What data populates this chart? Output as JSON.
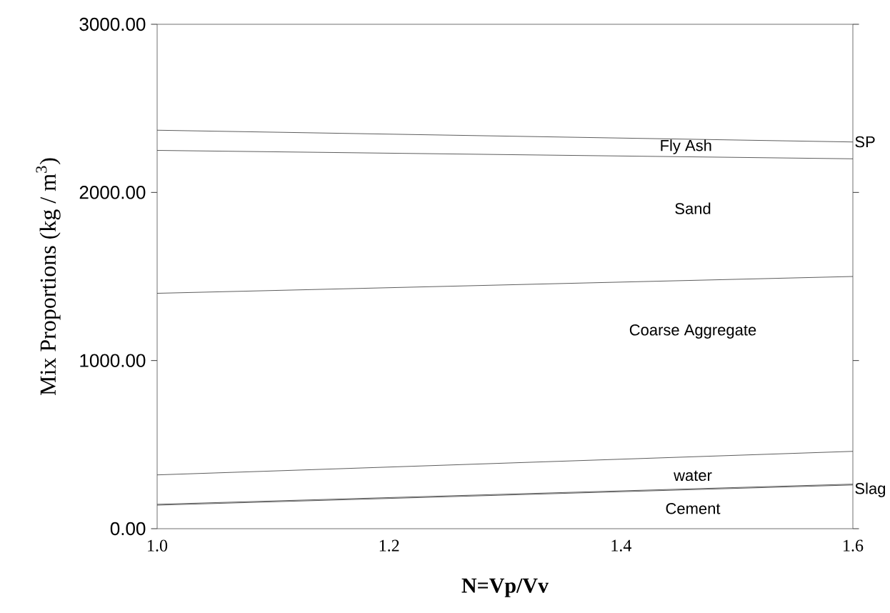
{
  "chart_data": {
    "type": "line",
    "xlabel": "N=Vp/Vv",
    "ylabel": "Mix Proportions (kg / m$^{3}$)",
    "x": [
      1.0,
      1.6
    ],
    "series": [
      {
        "color": "#333333",
        "values": [
          140,
          260
        ]
      },
      {
        "color": "#333333",
        "values": [
          145,
          265
        ]
      },
      {
        "color": "#333333",
        "values": [
          320,
          460
        ]
      },
      {
        "color": "#333333",
        "values": [
          1400,
          1500
        ]
      },
      {
        "color": "#333333",
        "values": [
          2250,
          2200
        ]
      },
      {
        "color": "#333333",
        "values": [
          2370,
          2300
        ]
      }
    ],
    "xlim": [
      1.0,
      1.6
    ],
    "ylim": [
      0,
      3000
    ],
    "xticks": [
      {
        "value": 1.0,
        "label": "1.0"
      },
      {
        "value": 1.2,
        "label": "1.2"
      },
      {
        "value": 1.4,
        "label": "1.4"
      },
      {
        "value": 1.6,
        "label": "1.6"
      }
    ],
    "yticks": [
      {
        "value": 0,
        "label": "0.00"
      },
      {
        "value": 1000,
        "label": "1000.00"
      },
      {
        "value": 2000,
        "label": "2000.00"
      },
      {
        "value": 3000,
        "label": "3000.00"
      }
    ],
    "grid": false,
    "marker": "none",
    "line_style": "solid",
    "annotations": [
      "SP",
      "Fly Ash",
      "Sand",
      "Coarse Aggregate",
      "water",
      "Slag",
      "Cement"
    ]
  }
}
